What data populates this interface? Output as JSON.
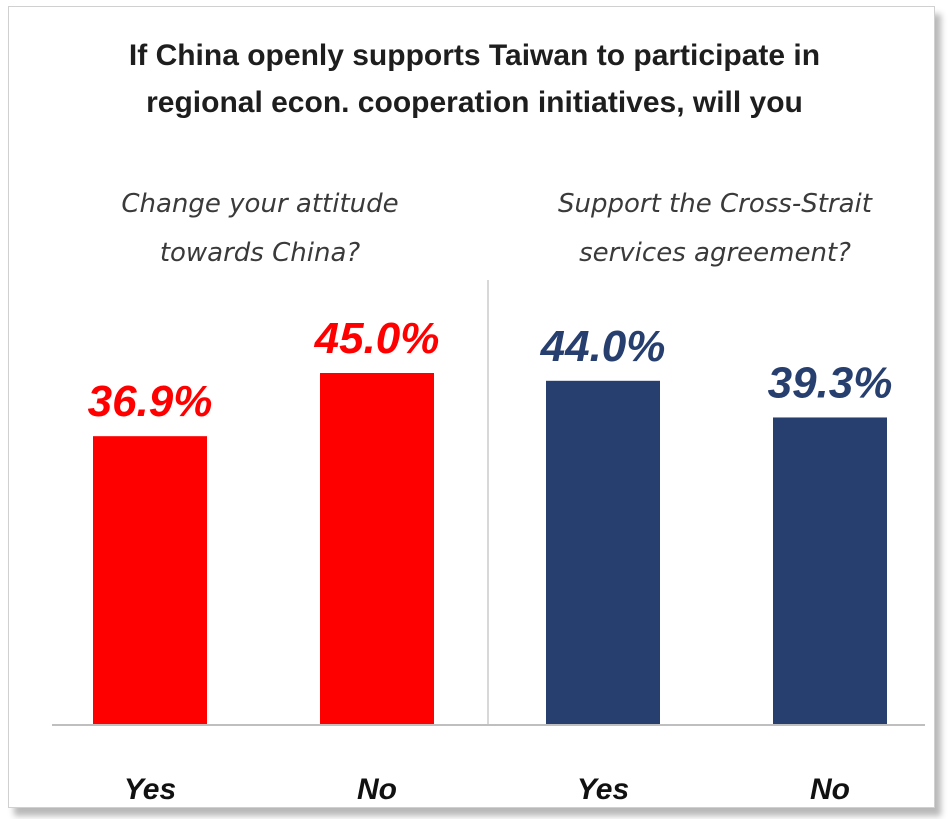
{
  "title_lines": [
    "If China openly supports Taiwan to participate in",
    "regional econ. cooperation initiatives, will you"
  ],
  "colors": {
    "red": "#ff0000",
    "navy": "#263f6e"
  },
  "chart_data": [
    {
      "type": "bar",
      "title_lines": [
        "Change your attitude",
        "towards China?"
      ],
      "categories": [
        "Yes",
        "No"
      ],
      "values": [
        36.9,
        45.0
      ],
      "value_labels": [
        "36.9%",
        "45.0%"
      ],
      "color": "#ff0000",
      "ylim": [
        0,
        60
      ],
      "grid": false
    },
    {
      "type": "bar",
      "title_lines": [
        "Support the Cross-Strait",
        "services agreement?"
      ],
      "categories": [
        "Yes",
        "No"
      ],
      "values": [
        44.0,
        39.3
      ],
      "value_labels": [
        "44.0%",
        "39.3%"
      ],
      "color": "#263f6e",
      "ylim": [
        0,
        60
      ],
      "grid": false
    }
  ]
}
